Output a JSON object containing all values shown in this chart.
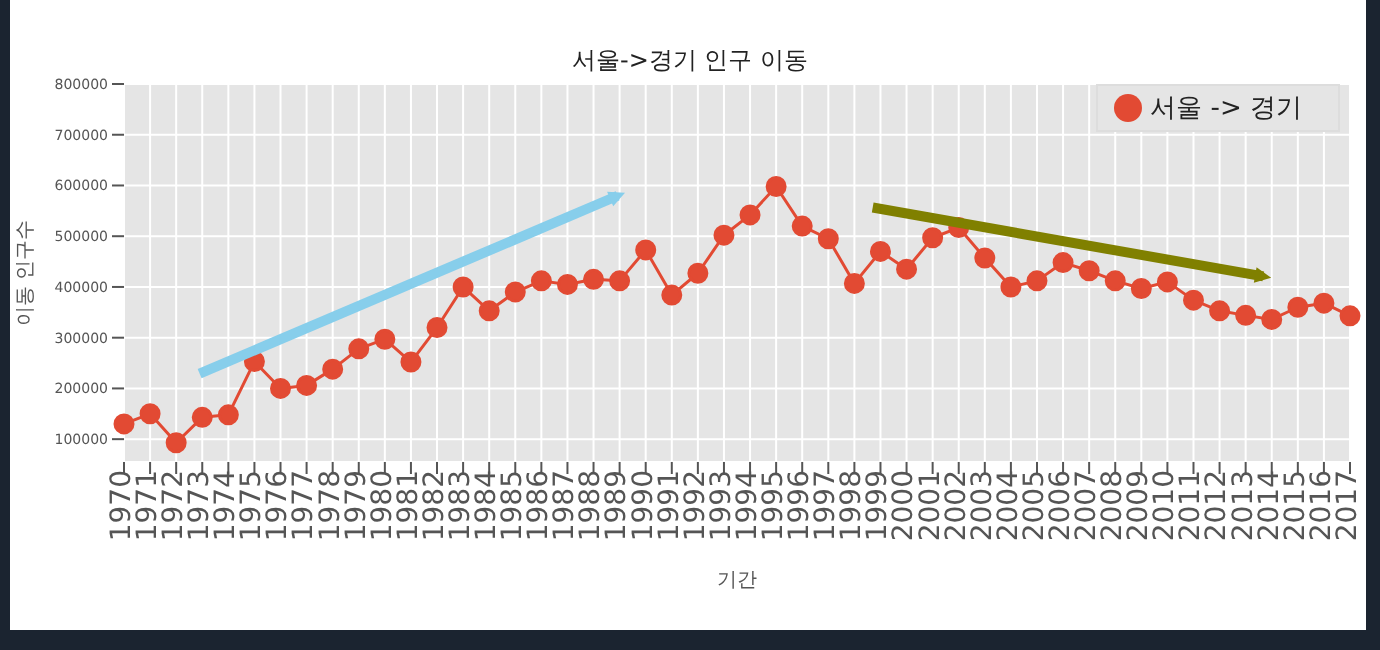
{
  "chart_data": {
    "type": "line",
    "title": "서울->경기 인구 이동",
    "xlabel": "기간",
    "ylabel": "이동 인구수",
    "categories": [
      "1970",
      "1971",
      "1972",
      "1973",
      "1974",
      "1975",
      "1976",
      "1977",
      "1978",
      "1979",
      "1980",
      "1981",
      "1982",
      "1983",
      "1984",
      "1985",
      "1986",
      "1987",
      "1988",
      "1989",
      "1990",
      "1991",
      "1992",
      "1993",
      "1994",
      "1995",
      "1996",
      "1997",
      "1998",
      "1999",
      "2000",
      "2001",
      "2002",
      "2003",
      "2004",
      "2005",
      "2006",
      "2007",
      "2008",
      "2009",
      "2010",
      "2011",
      "2012",
      "2013",
      "2014",
      "2015",
      "2016",
      "2017"
    ],
    "series": [
      {
        "name": "서울 -> 경기",
        "color": "#e24a33",
        "values": [
          130000,
          150000,
          93000,
          143000,
          148000,
          253000,
          200000,
          206000,
          238000,
          278000,
          297000,
          252000,
          320000,
          400000,
          353000,
          390000,
          412000,
          405000,
          415000,
          412000,
          473000,
          384000,
          427000,
          502000,
          542000,
          598000,
          520000,
          495000,
          407000,
          470000,
          435000,
          497000,
          517000,
          457000,
          400000,
          412000,
          448000,
          432000,
          412000,
          397000,
          410000,
          374000,
          353000,
          344000,
          336000,
          360000,
          368000,
          343000
        ]
      }
    ],
    "ylim": [
      55000,
      800000
    ],
    "yticks": [
      100000,
      200000,
      300000,
      400000,
      500000,
      600000,
      700000,
      800000
    ],
    "grid": true,
    "legend": "top right",
    "marker": "circle",
    "line_style": "solid"
  }
}
